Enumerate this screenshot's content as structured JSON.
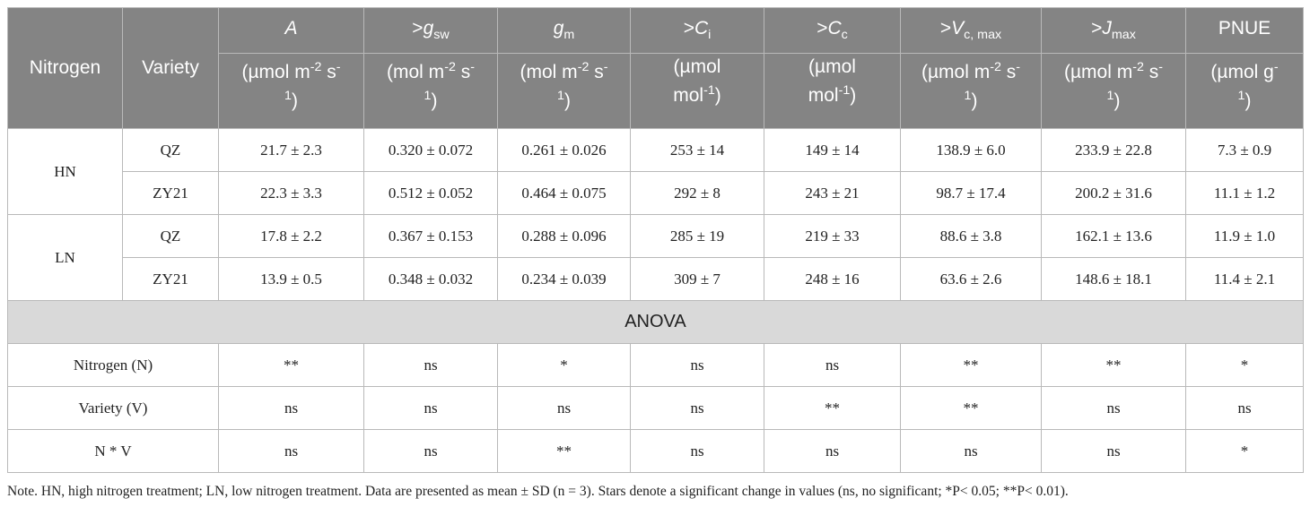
{
  "header": {
    "nitrogen": "Nitrogen",
    "variety": "Variety",
    "columns": [
      {
        "prefix": "",
        "var": "A",
        "sub": "",
        "unit_a": "(µmol m",
        "unit_sup": "-2",
        "unit_b": " s",
        "unit_sup2": "-",
        "unit_c": "1)",
        "unit_sup3": "1",
        "unit_d": ")"
      },
      {
        "prefix": ">",
        "var": "g",
        "sub": "sw",
        "unit_a": "(mol m",
        "unit_sup": "-2",
        "unit_b": " s",
        "unit_sup2": "-",
        "unit_c": "",
        "unit_sup3": "1",
        "unit_d": ")"
      },
      {
        "prefix": "",
        "var": "g",
        "sub": "m",
        "unit_a": "(mol m",
        "unit_sup": "-2",
        "unit_b": " s",
        "unit_sup2": "-",
        "unit_c": "",
        "unit_sup3": "1",
        "unit_d": ")"
      },
      {
        "prefix": ">",
        "var": "C",
        "sub": "i",
        "unit_a": "(µmol",
        "unit_sup": "",
        "unit_b": "mol",
        "unit_sup2": "-1",
        "unit_c": ")",
        "unit_sup3": "",
        "unit_d": ""
      },
      {
        "prefix": ">",
        "var": "C",
        "sub": "c",
        "unit_a": "(µmol",
        "unit_sup": "",
        "unit_b": "mol",
        "unit_sup2": "-1",
        "unit_c": ")",
        "unit_sup3": "",
        "unit_d": ""
      },
      {
        "prefix": ">",
        "var": "V",
        "sub": "c, max",
        "unit_a": "(µmol m",
        "unit_sup": "-2",
        "unit_b": " s",
        "unit_sup2": "-",
        "unit_c": "",
        "unit_sup3": "1",
        "unit_d": ")"
      },
      {
        "prefix": ">",
        "var": "J",
        "sub": "max",
        "unit_a": "(µmol m",
        "unit_sup": "-2",
        "unit_b": " s",
        "unit_sup2": "-",
        "unit_c": "",
        "unit_sup3": "1",
        "unit_d": ")"
      },
      {
        "prefix": "",
        "var": "PNUE",
        "sub": "",
        "unit_a": "(µmol g",
        "unit_sup": "",
        "unit_b": "",
        "unit_sup2": "-",
        "unit_c": "",
        "unit_sup3": "1",
        "unit_d": ")"
      }
    ]
  },
  "groups": [
    {
      "nitrogen": "HN",
      "rows": [
        {
          "variety": "QZ",
          "cells": [
            "21.7 ± 2.3",
            "0.320 ± 0.072",
            "0.261 ± 0.026",
            "253 ± 14",
            "149 ± 14",
            "138.9 ± 6.0",
            "233.9 ± 22.8",
            "7.3 ± 0.9"
          ]
        },
        {
          "variety": "ZY21",
          "cells": [
            "22.3 ± 3.3",
            "0.512 ± 0.052",
            "0.464 ± 0.075",
            "292 ± 8",
            "243 ± 21",
            "98.7 ± 17.4",
            "200.2 ± 31.6",
            "11.1 ± 1.2"
          ]
        }
      ]
    },
    {
      "nitrogen": "LN",
      "rows": [
        {
          "variety": "QZ",
          "cells": [
            "17.8 ± 2.2",
            "0.367 ± 0.153",
            "0.288 ± 0.096",
            "285 ± 19",
            "219 ± 33",
            "88.6 ± 3.8",
            "162.1 ± 13.6",
            "11.9 ± 1.0"
          ]
        },
        {
          "variety": "ZY21",
          "cells": [
            "13.9 ± 0.5",
            "0.348 ± 0.032",
            "0.234 ± 0.039",
            "309 ± 7",
            "248 ± 16",
            "63.6 ± 2.6",
            "148.6 ± 18.1",
            "11.4 ± 2.1"
          ]
        }
      ]
    }
  ],
  "anova": {
    "label": "ANOVA",
    "rows": [
      {
        "factor": "Nitrogen (N)",
        "cells": [
          "**",
          "ns",
          "*",
          "ns",
          "ns",
          "**",
          "**",
          "*"
        ]
      },
      {
        "factor": "Variety (V)",
        "cells": [
          "ns",
          "ns",
          "ns",
          "ns",
          "**",
          "**",
          "ns",
          "ns"
        ]
      },
      {
        "factor": "N * V",
        "cells": [
          "ns",
          "ns",
          "**",
          "ns",
          "ns",
          "ns",
          "ns",
          "*"
        ]
      }
    ]
  },
  "note": "Note. HN, high nitrogen treatment; LN, low nitrogen treatment. Data are presented as mean ± SD (n = 3). Stars denote a significant change in values (ns, no significant; *P< 0.05; **P< 0.01)."
}
